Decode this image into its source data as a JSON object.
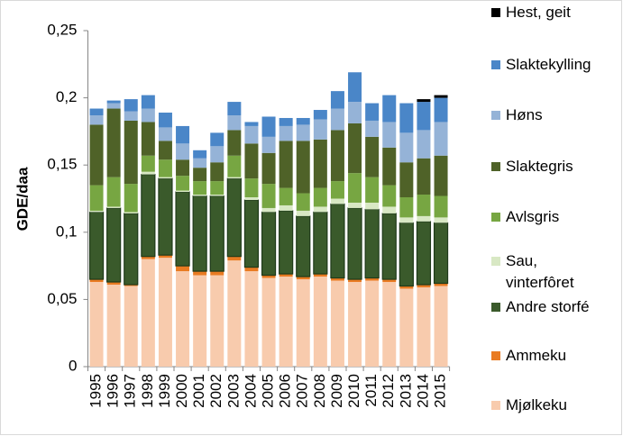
{
  "chart_data": {
    "type": "stacked-bar",
    "y_label": "GDE/daa",
    "categories": [
      "1995",
      "1996",
      "1997",
      "1998",
      "1999",
      "2000",
      "2001",
      "2002",
      "2003",
      "2004",
      "2005",
      "2006",
      "2007",
      "2008",
      "2009",
      "2010",
      "2011",
      "2012",
      "2013",
      "2014",
      "2015"
    ],
    "ylim": [
      0,
      0.25
    ],
    "yticks": [
      {
        "value": 0,
        "label": "0"
      },
      {
        "value": 0.05,
        "label": "0,05"
      },
      {
        "value": 0.1,
        "label": "0,1"
      },
      {
        "value": 0.15,
        "label": "0,15"
      },
      {
        "value": 0.2,
        "label": "0,2"
      },
      {
        "value": 0.25,
        "label": "0,25"
      }
    ],
    "grid": false,
    "series": [
      {
        "name": "Mjølkeku",
        "color": "#f8cbad",
        "values": [
          0.063,
          0.061,
          0.06,
          0.08,
          0.081,
          0.071,
          0.068,
          0.068,
          0.079,
          0.071,
          0.066,
          0.067,
          0.065,
          0.067,
          0.064,
          0.063,
          0.064,
          0.063,
          0.058,
          0.059,
          0.06
        ]
      },
      {
        "name": "Ammeku",
        "color": "#e97b22",
        "values": [
          0.002,
          0.002,
          0.001,
          0.002,
          0.002,
          0.004,
          0.003,
          0.003,
          0.003,
          0.003,
          0.002,
          0.002,
          0.002,
          0.002,
          0.002,
          0.002,
          0.002,
          0.002,
          0.002,
          0.002,
          0.002
        ]
      },
      {
        "name": "Andre storfé",
        "color": "#3a5a2b",
        "values": [
          0.05,
          0.055,
          0.053,
          0.061,
          0.057,
          0.055,
          0.056,
          0.056,
          0.058,
          0.05,
          0.047,
          0.047,
          0.045,
          0.046,
          0.055,
          0.053,
          0.051,
          0.049,
          0.047,
          0.047,
          0.045
        ]
      },
      {
        "name": "Sau, vinterfôret",
        "color": "#d8e8c4",
        "values": [
          0.001,
          0.001,
          0.001,
          0.002,
          0.001,
          0.001,
          0.001,
          0.001,
          0.001,
          0.002,
          0.003,
          0.004,
          0.004,
          0.004,
          0.004,
          0.004,
          0.005,
          0.005,
          0.004,
          0.004,
          0.004
        ]
      },
      {
        "name": "Avlsgris",
        "color": "#77a642",
        "values": [
          0.019,
          0.022,
          0.021,
          0.012,
          0.013,
          0.011,
          0.01,
          0.01,
          0.016,
          0.014,
          0.018,
          0.013,
          0.013,
          0.014,
          0.013,
          0.022,
          0.019,
          0.016,
          0.015,
          0.016,
          0.016
        ]
      },
      {
        "name": "Slaktegris",
        "color": "#4f6228",
        "values": [
          0.045,
          0.051,
          0.047,
          0.025,
          0.014,
          0.012,
          0.01,
          0.014,
          0.019,
          0.026,
          0.023,
          0.035,
          0.039,
          0.036,
          0.038,
          0.037,
          0.03,
          0.028,
          0.026,
          0.027,
          0.03
        ]
      },
      {
        "name": "Høns",
        "color": "#95b3d7",
        "values": [
          0.007,
          0.004,
          0.007,
          0.01,
          0.01,
          0.012,
          0.007,
          0.012,
          0.011,
          0.013,
          0.012,
          0.011,
          0.012,
          0.015,
          0.016,
          0.016,
          0.012,
          0.019,
          0.022,
          0.021,
          0.025
        ]
      },
      {
        "name": "Slaktekylling",
        "color": "#4a86c8",
        "values": [
          0.005,
          0.002,
          0.009,
          0.01,
          0.011,
          0.013,
          0.006,
          0.01,
          0.01,
          0.003,
          0.015,
          0.006,
          0.005,
          0.007,
          0.013,
          0.022,
          0.013,
          0.02,
          0.022,
          0.021,
          0.018
        ]
      },
      {
        "name": "Hest, geit",
        "color": "#000000",
        "values": [
          0,
          0,
          0,
          0,
          0,
          0,
          0,
          0,
          0,
          0,
          0,
          0,
          0,
          0,
          0,
          0,
          0,
          0,
          0,
          0.002,
          0.002
        ]
      }
    ]
  }
}
